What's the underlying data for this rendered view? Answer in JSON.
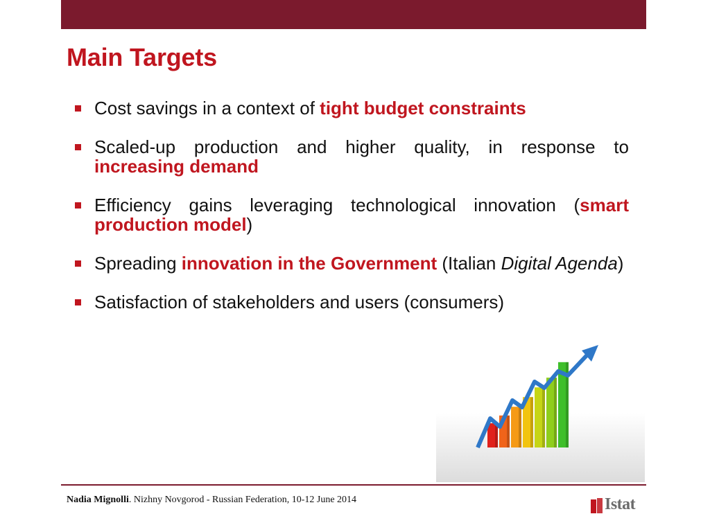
{
  "slide": {
    "title": "Main Targets",
    "bullets": [
      {
        "text_before": "Cost savings in a context of ",
        "highlight": "tight budget constraints",
        "text_after": ""
      },
      {
        "text_before": "Scaled-up production and higher quality, in response to ",
        "highlight": "increasing demand",
        "text_after": ""
      },
      {
        "text_before": "Efficiency gains leveraging technological innovation (",
        "highlight": "smart production model",
        "text_after": ")"
      },
      {
        "text_before": "Spreading ",
        "highlight": "innovation in the Government",
        "text_mid": " (Italian ",
        "italic": "Digital Agenda",
        "text_after": ")"
      },
      {
        "text_before": "Satisfaction of stakeholders and users (consumers)",
        "highlight": "",
        "text_after": ""
      }
    ],
    "illustration": {
      "icon": "growth-bar-chart-with-arrow-icon",
      "bar_colors": [
        "#e0201b",
        "#f0641a",
        "#f59a16",
        "#f2c40f",
        "#c6d516",
        "#8fce1c",
        "#3fbf2a"
      ],
      "bar_levels": [
        0.25,
        0.33,
        0.42,
        0.52,
        0.62,
        0.72,
        0.88
      ],
      "arrow_color": "#2f78c8"
    }
  },
  "footer": {
    "author": "Nadia Mignolli",
    "event": ". Nizhny Novgorod - Russian Federation, 10-12 June 2014",
    "logo_text": "Istat",
    "logo_color": "#c0161f"
  },
  "theme": {
    "bar_color": "#7b1a2d",
    "accent": "#c0161f"
  }
}
